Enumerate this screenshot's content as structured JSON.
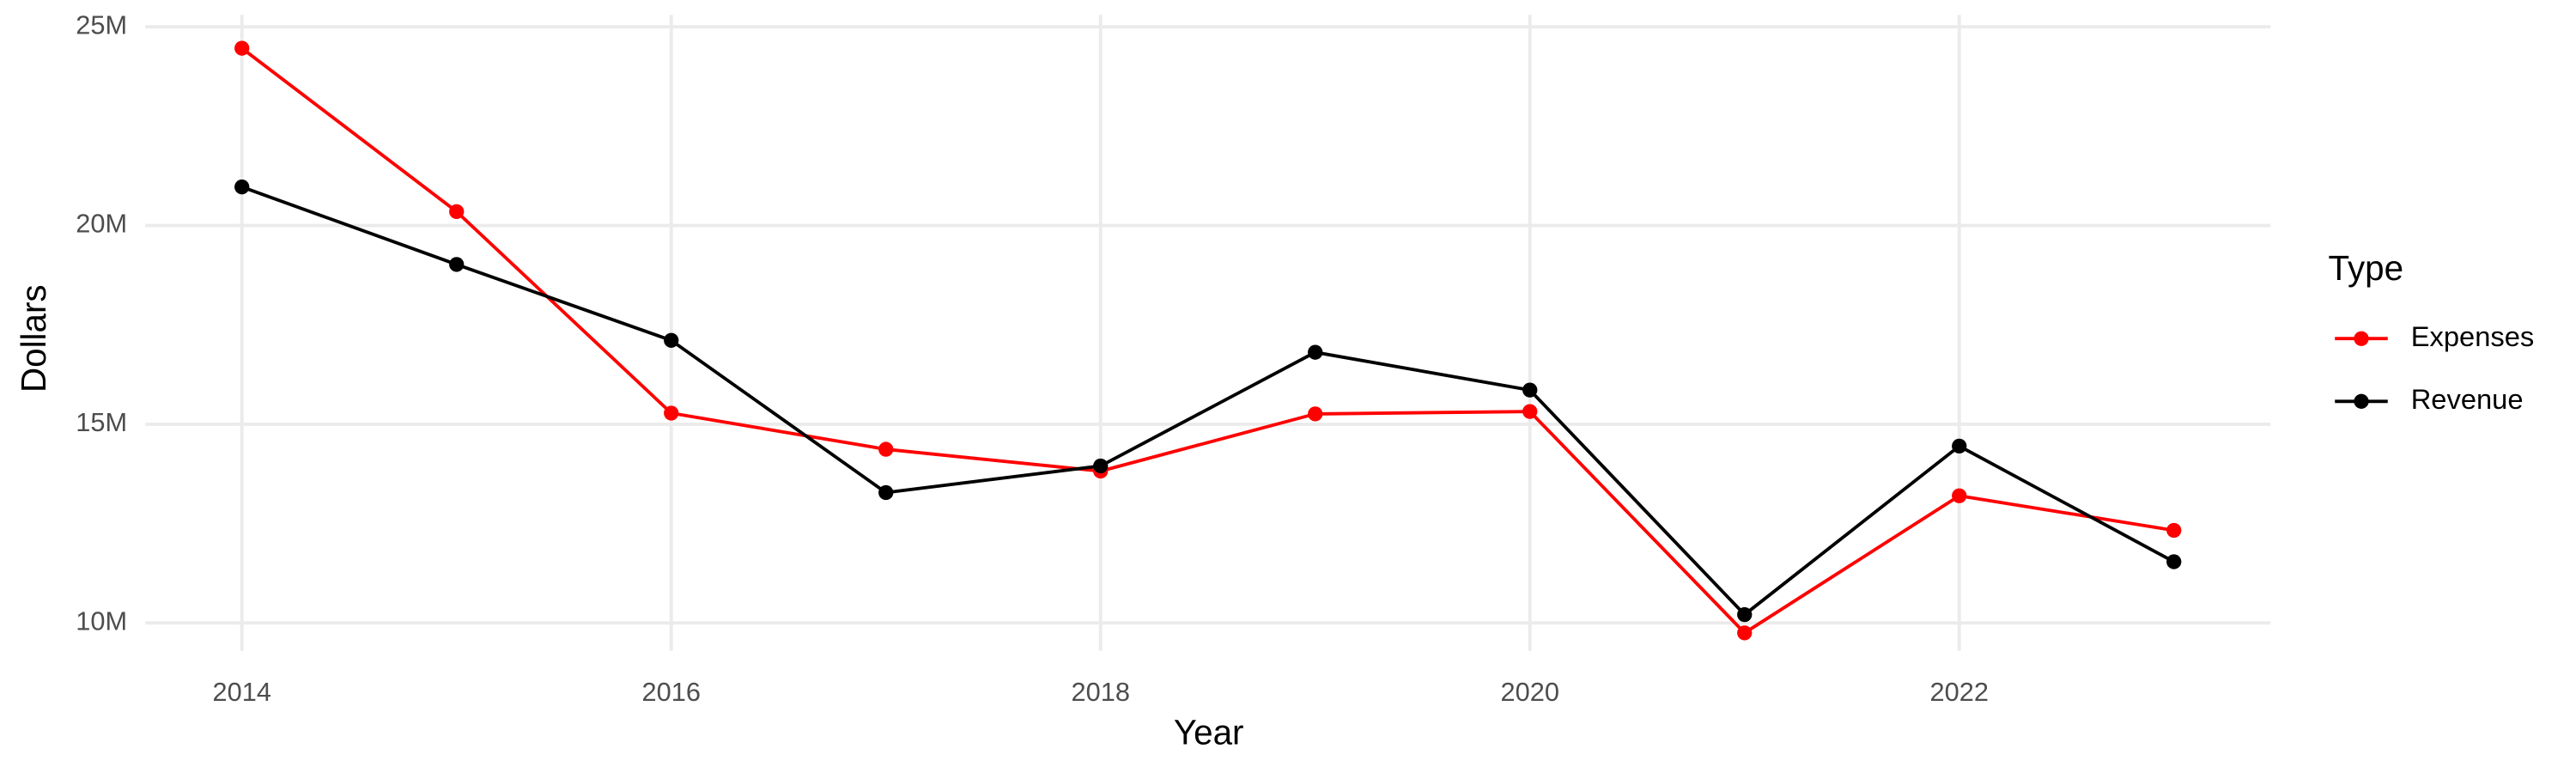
{
  "chart_data": {
    "type": "line",
    "x": [
      2014,
      2015,
      2016,
      2017,
      2018,
      2019,
      2020,
      2021,
      2022,
      2023
    ],
    "series": [
      {
        "name": "Expenses",
        "color": "#ff0000",
        "values": [
          24460000,
          20350000,
          15280000,
          14370000,
          13820000,
          15260000,
          15320000,
          9750000,
          13200000,
          12330000
        ]
      },
      {
        "name": "Revenue",
        "color": "#000000",
        "values": [
          20970000,
          19020000,
          17110000,
          13280000,
          13950000,
          16810000,
          15860000,
          10210000,
          14450000,
          11540000
        ]
      }
    ],
    "xlabel": "Year",
    "ylabel": "Dollars",
    "legend_title": "Type",
    "xlim": [
      2013.55,
      2023.45
    ],
    "xticks": [
      2014,
      2016,
      2018,
      2020,
      2022
    ],
    "ylim": [
      9300000,
      25300000
    ],
    "yticks": [
      {
        "value": 10000000,
        "label": "10M"
      },
      {
        "value": 15000000,
        "label": "15M"
      },
      {
        "value": 20000000,
        "label": "20M"
      },
      {
        "value": 25000000,
        "label": "25M"
      }
    ],
    "grid": true,
    "legend": "right"
  }
}
